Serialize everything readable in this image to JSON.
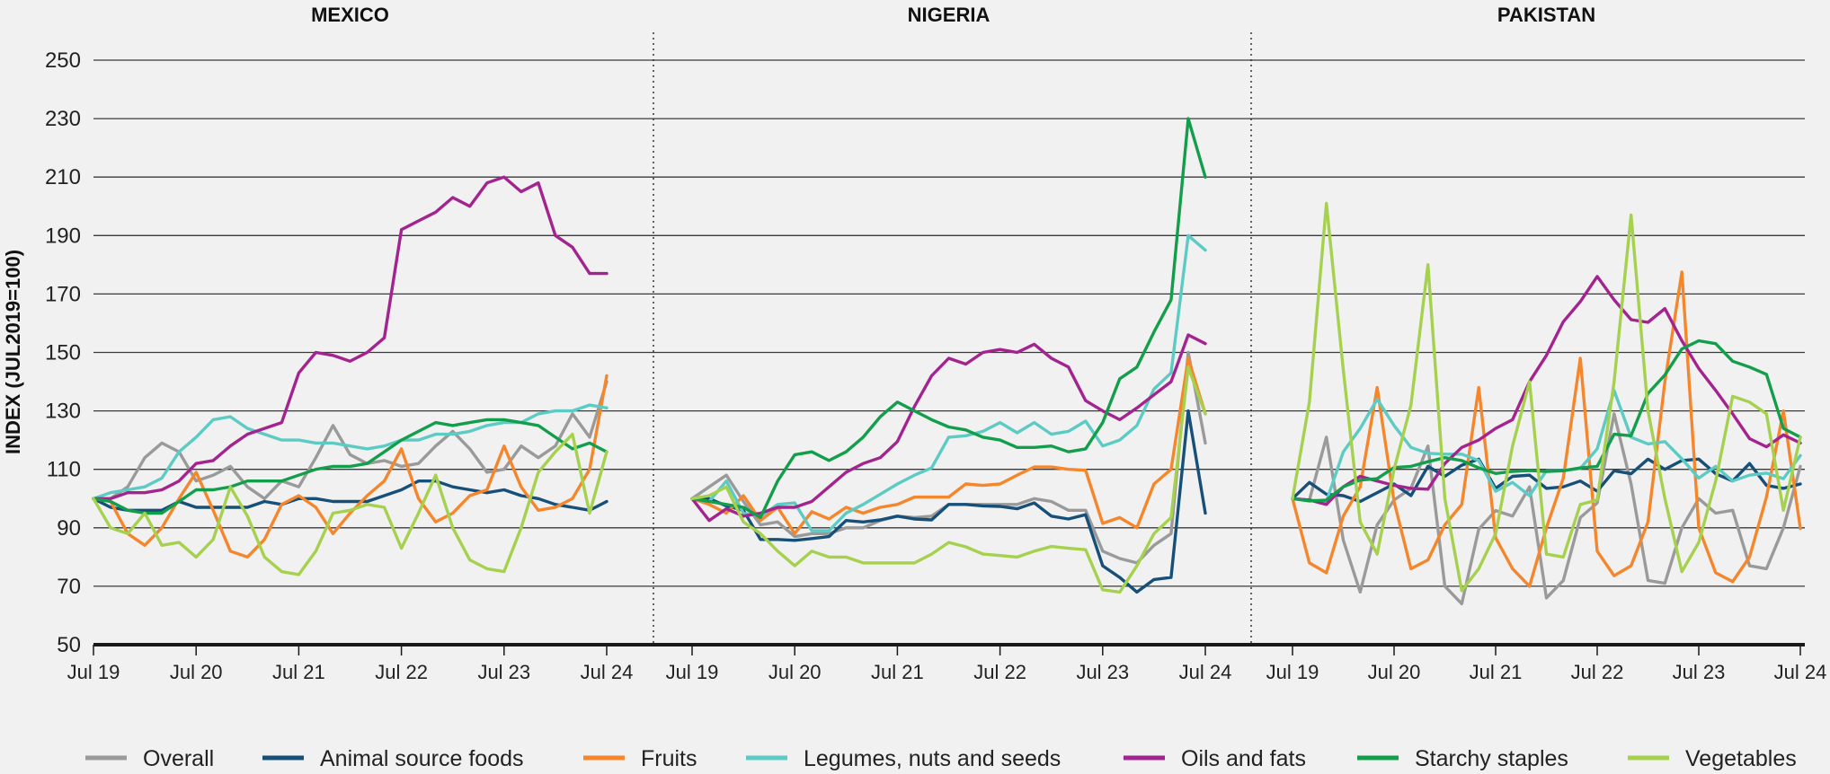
{
  "y_axis_title": "INDEX (JUL2019=100)",
  "legend": [
    {
      "name": "Overall",
      "color": "#9a9a9a"
    },
    {
      "name": "Animal source foods",
      "color": "#165079"
    },
    {
      "name": "Fruits",
      "color": "#f5862b"
    },
    {
      "name": "Legumes, nuts and seeds",
      "color": "#5ccbc4"
    },
    {
      "name": "Oils and fats",
      "color": "#a3238f"
    },
    {
      "name": "Starchy staples",
      "color": "#139e4b"
    },
    {
      "name": "Vegetables",
      "color": "#a6d14e"
    }
  ],
  "chart_data": [
    {
      "type": "line",
      "title": "MEXICO",
      "ylabel": "INDEX (JUL2019=100)",
      "ylim": [
        50,
        250
      ],
      "yticks": [
        50,
        70,
        90,
        110,
        130,
        150,
        170,
        190,
        210,
        230,
        250
      ],
      "xticks": [
        "Jul 19",
        "Jul 20",
        "Jul 21",
        "Jul 22",
        "Jul 23",
        "Jul 24"
      ],
      "x": [
        "2019-07",
        "2019-09",
        "2019-11",
        "2020-01",
        "2020-03",
        "2020-05",
        "2020-07",
        "2020-09",
        "2020-11",
        "2021-01",
        "2021-03",
        "2021-05",
        "2021-07",
        "2021-09",
        "2021-11",
        "2022-01",
        "2022-03",
        "2022-05",
        "2022-07",
        "2022-09",
        "2022-11",
        "2023-01",
        "2023-03",
        "2023-05",
        "2023-07",
        "2023-09",
        "2023-11",
        "2024-01",
        "2024-03",
        "2024-05",
        "2024-07"
      ],
      "series": [
        {
          "name": "Overall",
          "values": [
            100,
            100,
            104,
            114,
            119,
            116,
            106,
            108,
            111,
            104,
            100,
            106,
            104,
            114,
            125,
            115,
            112,
            113,
            111,
            112,
            118,
            123,
            117,
            109,
            110,
            118,
            114,
            118,
            129,
            121,
            140
          ]
        },
        {
          "name": "Animal source foods",
          "values": [
            100,
            97,
            96,
            96,
            96,
            99,
            97,
            97,
            97,
            97,
            99,
            98,
            100,
            100,
            99,
            99,
            99,
            101,
            103,
            106,
            106,
            104,
            103,
            102,
            103,
            101,
            100,
            98,
            97,
            96,
            99
          ]
        },
        {
          "name": "Fruits",
          "values": [
            100,
            99,
            88,
            84,
            90,
            100,
            109,
            96,
            82,
            80,
            86,
            98,
            101,
            97,
            88,
            95,
            101,
            106,
            117,
            100,
            92,
            95,
            101,
            103,
            118,
            104,
            96,
            97,
            100,
            110,
            142
          ]
        },
        {
          "name": "Legumes, nuts and seeds",
          "values": [
            100,
            102,
            103,
            104,
            107,
            116,
            121,
            127,
            128,
            124,
            122,
            120,
            120,
            119,
            119,
            118,
            117,
            118,
            120,
            120,
            122,
            122,
            123,
            125,
            126,
            126,
            129,
            130,
            130,
            132,
            131
          ]
        },
        {
          "name": "Oils and fats",
          "values": [
            100,
            100,
            102,
            102,
            103,
            106,
            112,
            113,
            118,
            122,
            124,
            126,
            143,
            150,
            149,
            147,
            150,
            155,
            192,
            195,
            198,
            203,
            200,
            208,
            210,
            205,
            208,
            190,
            186,
            177,
            177
          ]
        },
        {
          "name": "Starchy staples",
          "values": [
            100,
            99,
            96,
            95,
            95,
            99,
            103,
            103,
            104,
            106,
            106,
            106,
            108,
            110,
            111,
            111,
            112,
            116,
            120,
            123,
            126,
            125,
            126,
            127,
            127,
            126,
            125,
            121,
            117,
            119,
            116
          ]
        },
        {
          "name": "Vegetables",
          "values": [
            100,
            90,
            88,
            95,
            84,
            85,
            80,
            86,
            104,
            94,
            80,
            75,
            74,
            82,
            95,
            96,
            98,
            97,
            83,
            95,
            108,
            90,
            79,
            76,
            75,
            90,
            109,
            116,
            122,
            95,
            116
          ]
        }
      ]
    },
    {
      "type": "line",
      "title": "NIGERIA",
      "ylim": [
        50,
        250
      ],
      "yticks": [
        50,
        70,
        90,
        110,
        130,
        150,
        170,
        190,
        210,
        230,
        250
      ],
      "xticks": [
        "Jul 19",
        "Jul 20",
        "Jul 21",
        "Jul 22",
        "Jul 23",
        "Jul 24"
      ],
      "x": [
        "2019-07",
        "2019-09",
        "2019-11",
        "2020-01",
        "2020-03",
        "2020-05",
        "2020-07",
        "2020-09",
        "2020-11",
        "2021-01",
        "2021-03",
        "2021-05",
        "2021-07",
        "2021-09",
        "2021-11",
        "2022-01",
        "2022-03",
        "2022-05",
        "2022-07",
        "2022-09",
        "2022-11",
        "2023-01",
        "2023-03",
        "2023-05",
        "2023-07",
        "2023-09",
        "2023-11",
        "2024-01",
        "2024-03",
        "2024-05",
        "2024-07"
      ],
      "series": [
        {
          "name": "Overall",
          "values": [
            100,
            104,
            108,
            99,
            91,
            92,
            87,
            88,
            88,
            90,
            90,
            92.5,
            94,
            93.5,
            94,
            98,
            98,
            98,
            98,
            98,
            100,
            99,
            96,
            96,
            82,
            79.5,
            78,
            84,
            88,
            150,
            119
          ]
        },
        {
          "name": "Animal source foods",
          "values": [
            100,
            100,
            97.5,
            96,
            86,
            86,
            85.7,
            86.3,
            87,
            92.5,
            92,
            92.7,
            94,
            93,
            92.7,
            98,
            98,
            97.5,
            97.3,
            96.5,
            98.5,
            94,
            93,
            94.5,
            77,
            73,
            68,
            72.3,
            73,
            130,
            95
          ]
        },
        {
          "name": "Fruits",
          "values": [
            100,
            98,
            95,
            101,
            92.5,
            97,
            88,
            95.5,
            93,
            97,
            95,
            97,
            98,
            100.5,
            100.5,
            100.5,
            105,
            104.5,
            105,
            108,
            110.8,
            110.8,
            110,
            109.7,
            91.5,
            93.5,
            90,
            105,
            110,
            148,
            129
          ]
        },
        {
          "name": "Legumes, nuts and seeds",
          "values": [
            100,
            99,
            106,
            95,
            94,
            98,
            98.5,
            89,
            89,
            95,
            98,
            101.5,
            105,
            108,
            110.5,
            121,
            121.5,
            123,
            126,
            122.5,
            126,
            122,
            123,
            126.5,
            118,
            120,
            125,
            137.5,
            143,
            190,
            185
          ]
        },
        {
          "name": "Oils and fats",
          "values": [
            100,
            92.5,
            96.5,
            94,
            95,
            97,
            97,
            99,
            104,
            109,
            112,
            114,
            119.5,
            131.5,
            142,
            148,
            146,
            150,
            151,
            150,
            152.8,
            148,
            145,
            133.5,
            130,
            127,
            131,
            135.5,
            140,
            156,
            153
          ]
        },
        {
          "name": "Starchy staples",
          "values": [
            100,
            99,
            98,
            97,
            93.5,
            106,
            115,
            116,
            113,
            116,
            121,
            128,
            133,
            130,
            127,
            124.5,
            123.5,
            121,
            120,
            117.5,
            117.5,
            118,
            116,
            117,
            126,
            141,
            145,
            157,
            168,
            230,
            210
          ]
        },
        {
          "name": "Vegetables",
          "values": [
            100,
            101,
            104,
            92,
            88,
            82,
            77,
            82,
            80,
            80,
            78,
            78,
            78,
            78,
            81,
            85,
            83.5,
            81,
            80.5,
            80,
            82,
            83.6,
            83,
            82.5,
            68.8,
            68,
            77,
            88,
            93.5,
            145,
            129
          ]
        }
      ]
    },
    {
      "type": "line",
      "title": "PAKISTAN",
      "ylim": [
        50,
        250
      ],
      "yticks": [
        50,
        70,
        90,
        110,
        130,
        150,
        170,
        190,
        210,
        230,
        250
      ],
      "xticks": [
        "Jul 19",
        "Jul 20",
        "Jul 21",
        "Jul 22",
        "Jul 23",
        "Jul 24"
      ],
      "x": [
        "2019-07",
        "2019-09",
        "2019-11",
        "2020-01",
        "2020-03",
        "2020-05",
        "2020-07",
        "2020-09",
        "2020-11",
        "2021-01",
        "2021-03",
        "2021-05",
        "2021-07",
        "2021-09",
        "2021-11",
        "2022-01",
        "2022-03",
        "2022-05",
        "2022-07",
        "2022-09",
        "2022-11",
        "2023-01",
        "2023-03",
        "2023-05",
        "2023-07",
        "2023-09",
        "2023-11",
        "2024-01",
        "2024-03",
        "2024-05",
        "2024-07"
      ],
      "series": [
        {
          "name": "Overall",
          "values": [
            100,
            99.5,
            121,
            85.8,
            68,
            91,
            99.5,
            103.5,
            118,
            70,
            64,
            89.5,
            95.9,
            94,
            104,
            66,
            72,
            93.5,
            98.5,
            129,
            105,
            72,
            71,
            90,
            100,
            95,
            96,
            77,
            76,
            90,
            111
          ]
        },
        {
          "name": "Animal source foods",
          "values": [
            100,
            105.5,
            101.5,
            101,
            99,
            102,
            105,
            101,
            111,
            107.6,
            111.4,
            113.5,
            103.5,
            107.6,
            108,
            103.5,
            104,
            106,
            102.5,
            109.5,
            108.5,
            113.5,
            110,
            113,
            113.5,
            108.5,
            106,
            112,
            104.5,
            103.5,
            105
          ]
        },
        {
          "name": "Fruits",
          "values": [
            100,
            78,
            74.6,
            94,
            104,
            138,
            99,
            76,
            79,
            91,
            98,
            138,
            86.6,
            76,
            70,
            90,
            107,
            148,
            82,
            73.6,
            77,
            92,
            140,
            177.5,
            90,
            74.6,
            71.6,
            80,
            100.5,
            130,
            89.8
          ]
        },
        {
          "name": "Legumes, nuts and seeds",
          "values": [
            100,
            99.5,
            99,
            116,
            124,
            134,
            125,
            117.5,
            115.5,
            115.2,
            115.2,
            113,
            102.5,
            105.5,
            101,
            109.5,
            109.6,
            110.3,
            117,
            137,
            121,
            118.7,
            119.5,
            113.6,
            107,
            111,
            106,
            108,
            108.7,
            106.8,
            114.7
          ]
        },
        {
          "name": "Oils and fats",
          "values": [
            100,
            99.5,
            98,
            104,
            107.6,
            106,
            104.5,
            103.5,
            103.2,
            112,
            117.5,
            120,
            124,
            127,
            140,
            149,
            160.5,
            167.4,
            176,
            168,
            161.2,
            160.3,
            165,
            154,
            144.5,
            137,
            129,
            120.5,
            117.7,
            121.8,
            119
          ]
        },
        {
          "name": "Starchy staples",
          "values": [
            100,
            99.2,
            99.5,
            104,
            106.3,
            106.8,
            110.6,
            111,
            112.6,
            114,
            113,
            110.5,
            108.6,
            109.3,
            109.6,
            109.3,
            109.5,
            110.5,
            111,
            122,
            121.5,
            136,
            142.3,
            151.2,
            154,
            153,
            147,
            145,
            142.5,
            124,
            121
          ]
        },
        {
          "name": "Vegetables",
          "values": [
            100,
            133,
            201,
            144,
            92,
            81,
            110,
            132,
            180,
            100,
            68.5,
            76,
            88,
            118,
            140,
            81,
            80,
            98,
            99.5,
            140,
            197,
            130,
            100,
            75,
            85,
            106,
            135,
            133,
            129,
            96,
            121
          ]
        }
      ]
    }
  ]
}
